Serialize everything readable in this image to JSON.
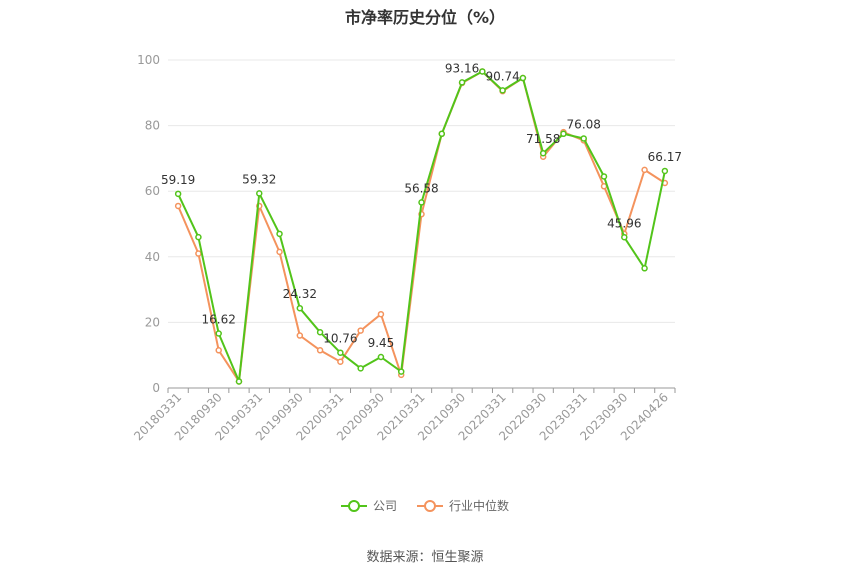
{
  "chart_data": {
    "type": "line",
    "title": "市净率历史分位（%）",
    "xlabel": "",
    "ylabel": "",
    "ylim": [
      0,
      100
    ],
    "yticks": [
      0,
      20,
      40,
      60,
      80,
      100
    ],
    "x": [
      "20180331",
      "20180630",
      "20180930",
      "20181231",
      "20190331",
      "20190630",
      "20190930",
      "20191231",
      "20200331",
      "20200630",
      "20200930",
      "20201231",
      "20210331",
      "20210630",
      "20210930",
      "20211231",
      "20220331",
      "20220630",
      "20220930",
      "20221231",
      "20230331",
      "20230630",
      "20230930",
      "20231231",
      "20240426"
    ],
    "xtick_labels": [
      "20180331",
      "20180930",
      "20190331",
      "20190930",
      "20200331",
      "20200930",
      "20210331",
      "20210930",
      "20220331",
      "20220930",
      "20230331",
      "20230930",
      "20240426"
    ],
    "grid": true,
    "legend_position": "bottom",
    "series": [
      {
        "name": "公司",
        "color": "#52c41a",
        "values": [
          59.19,
          46,
          16.62,
          2,
          59.32,
          47,
          24.32,
          17,
          10.76,
          6,
          9.45,
          5,
          56.58,
          77.5,
          93.16,
          96.5,
          90.74,
          94.5,
          71.58,
          77.5,
          76.08,
          64.5,
          45.96,
          36.5,
          66.17
        ]
      },
      {
        "name": "行业中位数",
        "color": "#f4935d",
        "values": [
          55.5,
          41,
          11.5,
          2,
          55.5,
          41.5,
          16,
          11.5,
          8,
          17.5,
          22.5,
          4,
          53,
          77.5,
          93,
          96.5,
          90.5,
          94.5,
          70.5,
          78,
          75.5,
          61.5,
          47,
          66.5,
          62.5
        ]
      }
    ],
    "annotations": [
      {
        "series": 0,
        "index": 0,
        "text": "59.19"
      },
      {
        "series": 0,
        "index": 2,
        "text": "16.62"
      },
      {
        "series": 0,
        "index": 4,
        "text": "59.32"
      },
      {
        "series": 0,
        "index": 6,
        "text": "24.32"
      },
      {
        "series": 0,
        "index": 8,
        "text": "10.76"
      },
      {
        "series": 0,
        "index": 10,
        "text": "9.45"
      },
      {
        "series": 0,
        "index": 12,
        "text": "56.58"
      },
      {
        "series": 0,
        "index": 14,
        "text": "93.16"
      },
      {
        "series": 0,
        "index": 16,
        "text": "90.74"
      },
      {
        "series": 0,
        "index": 18,
        "text": "71.58"
      },
      {
        "series": 0,
        "index": 20,
        "text": "76.08"
      },
      {
        "series": 0,
        "index": 22,
        "text": "45.96"
      },
      {
        "series": 0,
        "index": 24,
        "text": "66.17"
      }
    ]
  },
  "source_text": "数据来源：恒生聚源"
}
